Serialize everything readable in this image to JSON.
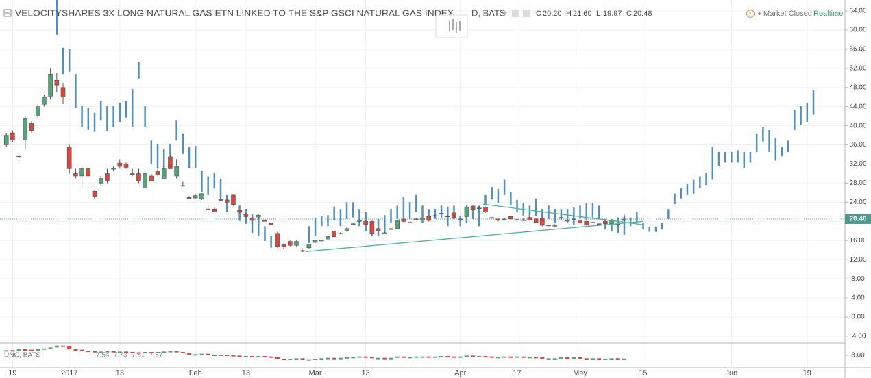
{
  "chart_data": {
    "type": "candlestick",
    "title": "VELOCITYSHARES 3X LONG NATURAL GAS ETN LINKED TO THE S&P GSCI NATURAL GAS INDEX",
    "interval_exchange": "D, BATS",
    "ohlc_readout": [
      {
        "label": "O",
        "value": "20.20"
      },
      {
        "label": "H",
        "value": "21.60"
      },
      {
        "label": "L",
        "value": "19.97"
      },
      {
        "label": "C",
        "value": "20.48"
      }
    ],
    "market_status": "Market Closed",
    "realtime": "Realtime",
    "up_color": "#53a375",
    "down_color": "#d7493f",
    "x": [
      0,
      1,
      2,
      3,
      4,
      5,
      6,
      7,
      8,
      9,
      10,
      11,
      12,
      13,
      14,
      15,
      16,
      17,
      18,
      19,
      20,
      21,
      22,
      23,
      24,
      25,
      26,
      27,
      28,
      29,
      30,
      31,
      32,
      33,
      34,
      35,
      36,
      37,
      38,
      39,
      40,
      41,
      42,
      43,
      44,
      45,
      46,
      47,
      48,
      49,
      50,
      51,
      52,
      53,
      54,
      55,
      56,
      57,
      58,
      59,
      60,
      61,
      62,
      63,
      64,
      65,
      66,
      67,
      68,
      69,
      70,
      71,
      72,
      73,
      74,
      75,
      76,
      77,
      78,
      79,
      80,
      81,
      82,
      83,
      84,
      85,
      86,
      87,
      88,
      89,
      90,
      91,
      92,
      93,
      94,
      95,
      96,
      97,
      98
    ],
    "open": [
      36,
      38.5,
      33.6,
      37,
      40.5,
      42,
      44.5,
      46.2,
      49.5,
      48,
      35.5,
      30,
      29.5,
      31,
      26.3,
      28,
      30,
      30.9,
      32.2,
      32,
      30,
      30,
      27,
      29.5,
      30.5,
      29,
      33.5,
      29.5,
      27.5,
      25,
      24.9,
      24.7,
      22.6,
      22.6,
      24.6,
      24.5,
      25.5,
      22.3,
      21.5,
      20.7,
      20.9,
      20.3,
      19.6,
      17.5,
      15.2,
      15.8,
      15,
      13.9,
      14.5,
      15.6,
      15.9,
      16.3,
      18,
      17.4,
      18,
      19.4,
      20,
      20,
      20,
      18.5,
      17.4,
      18.3,
      18.5,
      20.5,
      19.8,
      20.4,
      20.3,
      21,
      21.1,
      21.6,
      21.1,
      21.8,
      20.4,
      21,
      23.2,
      22.7,
      23,
      20.7,
      20.5,
      20.4,
      21,
      20.3,
      20.2,
      20.8,
      20.5,
      20.7,
      19.1,
      19,
      20.7,
      20.1,
      20.4,
      20.2,
      20,
      19.7,
      19.4,
      20,
      19.5,
      19.4,
      20.2
    ],
    "high": [
      38.5,
      39,
      34.2,
      42,
      41,
      44.5,
      46.5,
      52,
      51,
      49,
      36,
      31,
      31.5,
      31.2,
      26.5,
      29.5,
      31,
      31.5,
      33,
      32.3,
      31,
      31,
      30.5,
      30,
      31,
      31.5,
      34,
      33,
      28.3,
      25.3,
      25.6,
      25.9,
      23.5,
      23,
      24.9,
      24.6,
      25.6,
      22.5,
      21.7,
      21,
      21.5,
      20.5,
      19.7,
      17.8,
      15.4,
      16,
      16,
      14.1,
      15.3,
      16.2,
      16.2,
      17,
      18.2,
      17.7,
      18.7,
      19.7,
      20.5,
      20.2,
      20.1,
      18.6,
      17.8,
      18.7,
      20.5,
      20.7,
      20,
      20.7,
      20.8,
      21.2,
      21.4,
      21.9,
      21.3,
      22,
      20.6,
      23.2,
      23.4,
      23,
      23.1,
      20.9,
      20.7,
      20.7,
      21.1,
      20.5,
      20.6,
      21,
      20.7,
      20.8,
      19.3,
      19.4,
      20.9,
      20.3,
      20.6,
      20.3,
      20.1,
      19.9,
      19.6,
      20.1,
      20.3,
      19.6,
      21.6
    ],
    "low": [
      35.5,
      36.5,
      32.6,
      35,
      38.5,
      41.5,
      44,
      45.5,
      47,
      44.5,
      30,
      29,
      27,
      29.5,
      24.8,
      27.5,
      28,
      30.5,
      31,
      31,
      29.5,
      28,
      26.8,
      28.5,
      29.5,
      28.8,
      31,
      29,
      27.3,
      24.7,
      24.7,
      24.5,
      22.3,
      22,
      24.3,
      23.8,
      23.3,
      21.8,
      20.7,
      20,
      20.8,
      19.8,
      19.1,
      14.5,
      14.2,
      14.8,
      14.8,
      13.6,
      14.3,
      15.5,
      15.8,
      16.1,
      16.6,
      17.3,
      17.8,
      19.3,
      19.8,
      19.3,
      17.3,
      17.9,
      17.3,
      18.2,
      18.4,
      19.8,
      19.6,
      20.2,
      20.2,
      20,
      21,
      21.5,
      20.8,
      20.6,
      20.3,
      20.9,
      22.3,
      22.6,
      21.8,
      20.6,
      20,
      20.3,
      20.4,
      20.2,
      20.1,
      20.1,
      19.6,
      19,
      19,
      18.9,
      20.6,
      20,
      20.3,
      19.6,
      19.1,
      19.6,
      19.3,
      19.4,
      19.4,
      19.3,
      19.97
    ],
    "close": [
      38,
      37,
      33.4,
      41.5,
      39,
      44,
      46,
      50.8,
      48.5,
      46,
      31,
      29.5,
      31,
      29.5,
      25.2,
      29,
      28.5,
      31.1,
      31.5,
      31.3,
      29.8,
      28.5,
      30,
      28.5,
      29.8,
      31,
      31,
      31.5,
      27.4,
      24.8,
      25.4,
      25.8,
      22.4,
      22,
      24.4,
      24,
      23.5,
      21.9,
      21,
      20.2,
      21.3,
      20,
      19.3,
      14.8,
      14.7,
      15,
      15.8,
      13.8,
      15.2,
      16,
      16.1,
      16.9,
      16.8,
      17.5,
      18.5,
      19.5,
      20.3,
      19.4,
      17.5,
      18,
      17.6,
      18.5,
      20.3,
      20,
      19.7,
      20.5,
      20.6,
      20.2,
      21.2,
      21.7,
      21,
      20.8,
      20.5,
      23,
      22.5,
      22.8,
      22,
      20.8,
      20.2,
      20.5,
      20.5,
      20.4,
      20.3,
      20.3,
      19.8,
      19.2,
      19.2,
      19.3,
      20.8,
      20.2,
      20.5,
      19.7,
      19.2,
      19.8,
      19.5,
      19.5,
      20.2,
      19.5,
      20.48
    ],
    "xlim": [
      -1,
      133
    ],
    "xticks": [
      {
        "value": 1,
        "label": "19"
      },
      {
        "value": 10,
        "label": "2017"
      },
      {
        "value": 18,
        "label": "13"
      },
      {
        "value": 30,
        "label": "Feb"
      },
      {
        "value": 38,
        "label": "13"
      },
      {
        "value": 49,
        "label": "Mar"
      },
      {
        "value": 57,
        "label": "13"
      },
      {
        "value": 72,
        "label": "Apr"
      },
      {
        "value": 81,
        "label": "17"
      },
      {
        "value": 91,
        "label": "May"
      },
      {
        "value": 101,
        "label": "15"
      },
      {
        "value": 115,
        "label": "Jun"
      },
      {
        "value": 127,
        "label": "19"
      }
    ],
    "ylim": [
      -4.87,
      66.29
    ],
    "yticks": [
      {
        "value": -4,
        "label": "-4.00"
      },
      {
        "value": 0,
        "label": "0.00"
      },
      {
        "value": 4,
        "label": "4.00"
      },
      {
        "value": 8,
        "label": "8.00"
      },
      {
        "value": 12,
        "label": "12.00"
      },
      {
        "value": 16,
        "label": "16.00"
      },
      {
        "value": 20,
        "label": "20.00"
      },
      {
        "value": 24,
        "label": "24.00"
      },
      {
        "value": 28,
        "label": "28.00"
      },
      {
        "value": 32,
        "label": "32.00"
      },
      {
        "value": 36,
        "label": "36.00"
      },
      {
        "value": 40,
        "label": "40.00"
      },
      {
        "value": 44,
        "label": "44.00"
      },
      {
        "value": 48,
        "label": "48.00"
      },
      {
        "value": 52,
        "label": "52.00"
      },
      {
        "value": 56,
        "label": "56.00"
      },
      {
        "value": 60,
        "label": "60.00"
      },
      {
        "value": 64,
        "label": "64.00"
      }
    ],
    "grid": true,
    "last_price": {
      "value": 20.48,
      "label": "20.48"
    },
    "last_price_color": "#4f9a8c",
    "projection": {
      "color": "#4f8fc6",
      "x": [
        8,
        9,
        10,
        11,
        12,
        13,
        14,
        15,
        16,
        17,
        18,
        19,
        20,
        21,
        22,
        23,
        24,
        25,
        26,
        27,
        28,
        29,
        30,
        31,
        32,
        33,
        34,
        35,
        37,
        38,
        39,
        40,
        41,
        42,
        48,
        49,
        50,
        51,
        52,
        53,
        54,
        55,
        56,
        57,
        58,
        59,
        60,
        61,
        62,
        63,
        64,
        65,
        66,
        67,
        68,
        69,
        70,
        71,
        72,
        73,
        74,
        75,
        76,
        77,
        78,
        79,
        80,
        81,
        82,
        83,
        84,
        85,
        86,
        87,
        88,
        89,
        90,
        91,
        92,
        93,
        94,
        95,
        96,
        97,
        98,
        99,
        100,
        101,
        102,
        103,
        104,
        105,
        106,
        107,
        108,
        109,
        110,
        111,
        112,
        113,
        114,
        115,
        116,
        117,
        118,
        119,
        120,
        121,
        122,
        123,
        124,
        125,
        126,
        127,
        128
      ],
      "high": [
        66.5,
        56.3,
        56,
        50.8,
        44.1,
        43.8,
        42.7,
        45.2,
        44.1,
        44.1,
        44.8,
        45.2,
        47.7,
        53.4,
        44.1,
        36.9,
        36.2,
        35.1,
        36.2,
        41.2,
        38.4,
        35.5,
        35.8,
        30.5,
        29.4,
        30.2,
        28.8,
        25.5,
        23.3,
        22.6,
        21.6,
        21.2,
        19,
        16.9,
        19,
        20.8,
        21.1,
        21.3,
        23.1,
        22.6,
        24,
        24,
        22.6,
        21.9,
        20.1,
        20.5,
        21.3,
        22.6,
        23.3,
        25.1,
        24,
        25.5,
        23.3,
        22.6,
        22.6,
        23.3,
        23.1,
        23.3,
        21.2,
        23.3,
        22.6,
        23.3,
        25.5,
        27.2,
        26.8,
        28.7,
        26.2,
        24.5,
        23.9,
        23.3,
        24.8,
        22.6,
        23.3,
        22.6,
        22.6,
        22.6,
        22.9,
        23.3,
        23.8,
        23.9,
        23.3,
        20.5,
        20.5,
        20.8,
        21.2,
        20.8,
        21.9,
        19.7,
        18.9,
        18.9,
        19.7,
        22.6,
        25.8,
        26.9,
        27.9,
        28.7,
        29.4,
        30.1,
        35.5,
        34.5,
        34.5,
        34.5,
        34.9,
        34.5,
        34.5,
        38.4,
        39.8,
        39.1,
        37.4,
        35.5,
        36.9,
        43.4,
        44.1,
        44.8,
        47.4
      ],
      "low": [
        59,
        50.8,
        51.3,
        43.7,
        39.8,
        39.1,
        38.7,
        41.2,
        38.8,
        39.8,
        40.8,
        41.7,
        39.8,
        49.8,
        39.8,
        31.9,
        31.2,
        30.8,
        32.6,
        36.9,
        34.1,
        31.2,
        31.2,
        26.2,
        25.5,
        26.9,
        24.8,
        21.9,
        20.1,
        19.5,
        17.6,
        16.9,
        15.9,
        14.5,
        15.5,
        16.9,
        19,
        19,
        20.2,
        19,
        20.5,
        20.8,
        19,
        17.9,
        16.9,
        16.9,
        17.6,
        19.7,
        20.5,
        20.8,
        20.5,
        21.9,
        19.7,
        20.2,
        20.5,
        20.8,
        19,
        20.5,
        19,
        19.7,
        20.5,
        19,
        23.3,
        24.6,
        23.9,
        25.5,
        23.3,
        21.9,
        21.2,
        20.8,
        21.2,
        19.7,
        20.5,
        19.7,
        20.2,
        19.7,
        19.3,
        20.5,
        20.2,
        20.8,
        20.5,
        18.3,
        17.9,
        17.6,
        17.2,
        19,
        19.7,
        18.3,
        17.8,
        17.8,
        18.3,
        20.5,
        23.6,
        24.8,
        25.5,
        25.8,
        26.9,
        27.6,
        28.7,
        31.6,
        32.3,
        32.3,
        32.3,
        31.2,
        32.3,
        34.5,
        36.7,
        34.5,
        32.7,
        33.6,
        34.5,
        39.1,
        40.2,
        40.8,
        42.3
      ]
    },
    "trend_color": "#4fb0a0",
    "trendlines": [
      {
        "x": [
          47.5,
          101
        ],
        "y": [
          13.7,
          20
        ]
      },
      {
        "x": [
          75.6,
          101
        ],
        "y": [
          23.6,
          19.3
        ]
      }
    ],
    "compare": {
      "symbol": "UNG, BATS",
      "readout": [
        "7.54",
        "7.73",
        "7.51",
        "7.57"
      ],
      "values": [
        8.5,
        8.45,
        8.6,
        8.55,
        8.5,
        8.6,
        8.7,
        8.8,
        9,
        8.95,
        8.6,
        8.55,
        8.45,
        8.4,
        8.3,
        8.35,
        8.4,
        8.3,
        8.35,
        8.3,
        8.25,
        8.2,
        8.3,
        8.25,
        8.3,
        8.35,
        8.4,
        8.3,
        8.15,
        8.05,
        8.05,
        8.1,
        8,
        7.95,
        8,
        7.95,
        7.9,
        7.85,
        7.85,
        7.8,
        7.85,
        7.8,
        7.75,
        7.55,
        7.5,
        7.55,
        7.6,
        7.45,
        7.5,
        7.55,
        7.6,
        7.65,
        7.6,
        7.65,
        7.7,
        7.75,
        7.8,
        7.75,
        7.6,
        7.65,
        7.6,
        7.65,
        7.8,
        7.75,
        7.75,
        7.8,
        7.8,
        7.75,
        7.8,
        7.85,
        7.8,
        7.75,
        7.8,
        7.9,
        7.85,
        7.85,
        7.8,
        7.75,
        7.75,
        7.8,
        7.75,
        7.8,
        7.75,
        7.75,
        7.7,
        7.6,
        7.6,
        7.6,
        7.7,
        7.65,
        7.7,
        7.6,
        7.55,
        7.6,
        7.55,
        7.55,
        7.6,
        7.55,
        7.57
      ],
      "ylim": [
        6.8,
        9.2
      ],
      "yticks": [
        {
          "value": 8,
          "label": "8.00"
        }
      ]
    }
  }
}
